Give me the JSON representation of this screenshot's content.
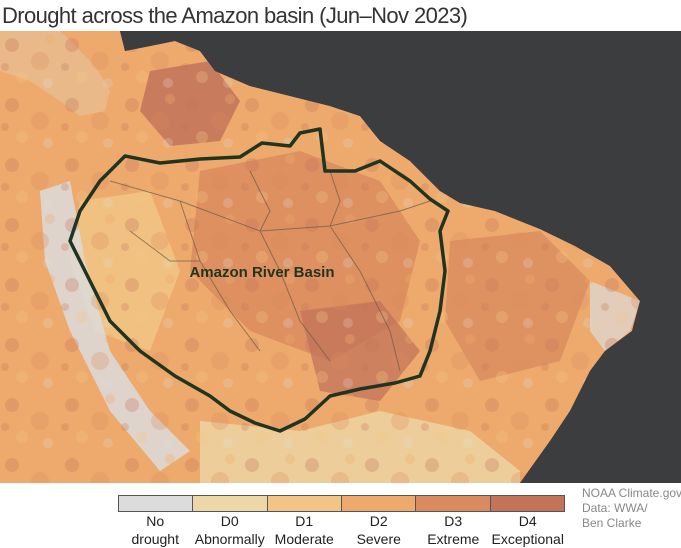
{
  "title": "Drought across the Amazon basin (Jun–Nov 2023)",
  "map": {
    "basin_label": "Amazon River Basin",
    "colors": {
      "ocean": "#3c3d3f",
      "basin_outline": "#1f3521",
      "rivers": "#6b5a4a"
    }
  },
  "legend": {
    "items": [
      {
        "line1": "No",
        "line2": "drought",
        "color": "#dcdcdc"
      },
      {
        "line1": "D0",
        "line2": "Abnormally",
        "color": "#ecd7a6"
      },
      {
        "line1": "D1",
        "line2": "Moderate",
        "color": "#f1c585"
      },
      {
        "line1": "D2",
        "line2": "Severe",
        "color": "#eeaa6c"
      },
      {
        "line1": "D3",
        "line2": "Extreme",
        "color": "#d98a5e"
      },
      {
        "line1": "D4",
        "line2": "Exceptional",
        "color": "#c2735a"
      }
    ]
  },
  "credit": {
    "line1": "NOAA Climate.gov",
    "line2": "Data: WWA/",
    "line3": "Ben Clarke"
  }
}
